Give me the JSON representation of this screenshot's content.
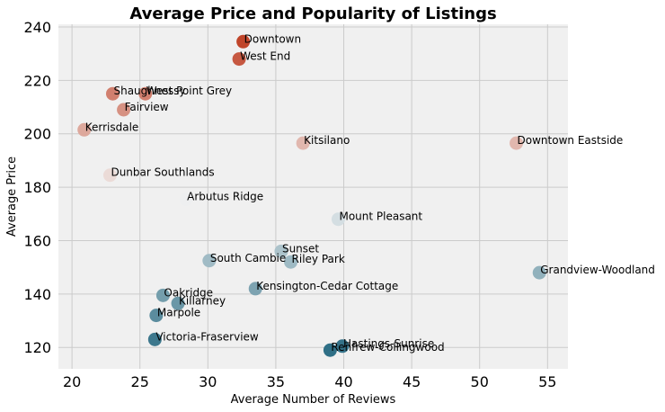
{
  "chart_data": {
    "type": "scatter",
    "title": "Average Price and Popularity of Listings",
    "xlabel": "Average Number of Reviews",
    "ylabel": "Average Price",
    "xlim": [
      19,
      56.5
    ],
    "ylim": [
      112,
      241
    ],
    "xticks": [
      20,
      25,
      30,
      35,
      40,
      45,
      50,
      55
    ],
    "yticks": [
      120,
      140,
      160,
      180,
      200,
      220,
      240
    ],
    "grid": true,
    "legend": "none",
    "color_scale": {
      "low": "#2f6f86",
      "mid": "#f2f2f2",
      "high": "#c0452a"
    },
    "points": [
      {
        "name": "Downtown",
        "x": 32.6,
        "y": 234.5
      },
      {
        "name": "West End",
        "x": 32.3,
        "y": 228.0
      },
      {
        "name": "Shaughnessy",
        "x": 23.0,
        "y": 215.0
      },
      {
        "name": "West Point Grey",
        "x": 25.4,
        "y": 215.0
      },
      {
        "name": "Fairview",
        "x": 23.8,
        "y": 209.0
      },
      {
        "name": "Kerrisdale",
        "x": 20.9,
        "y": 201.5
      },
      {
        "name": "Kitsilano",
        "x": 37.0,
        "y": 196.5
      },
      {
        "name": "Downtown Eastside",
        "x": 52.7,
        "y": 196.5
      },
      {
        "name": "Dunbar Southlands",
        "x": 22.8,
        "y": 184.5
      },
      {
        "name": "Arbutus Ridge",
        "x": 28.4,
        "y": 175.5
      },
      {
        "name": "Mount Pleasant",
        "x": 39.6,
        "y": 168.0
      },
      {
        "name": "Sunset",
        "x": 35.4,
        "y": 156.0
      },
      {
        "name": "South Cambie",
        "x": 30.1,
        "y": 152.5
      },
      {
        "name": "Riley Park",
        "x": 36.1,
        "y": 152.0
      },
      {
        "name": "Grandview-Woodland",
        "x": 54.4,
        "y": 148.0
      },
      {
        "name": "Kensington-Cedar Cottage",
        "x": 33.5,
        "y": 142.0
      },
      {
        "name": "Oakridge",
        "x": 26.7,
        "y": 139.5
      },
      {
        "name": "Killarney",
        "x": 27.8,
        "y": 136.5
      },
      {
        "name": "Marpole",
        "x": 26.2,
        "y": 132.0
      },
      {
        "name": "Victoria-Fraserview",
        "x": 26.1,
        "y": 123.0
      },
      {
        "name": "Hastings-Sunrise",
        "x": 39.9,
        "y": 120.5
      },
      {
        "name": "Renfrew-Collingwood",
        "x": 39.0,
        "y": 119.0
      }
    ]
  }
}
